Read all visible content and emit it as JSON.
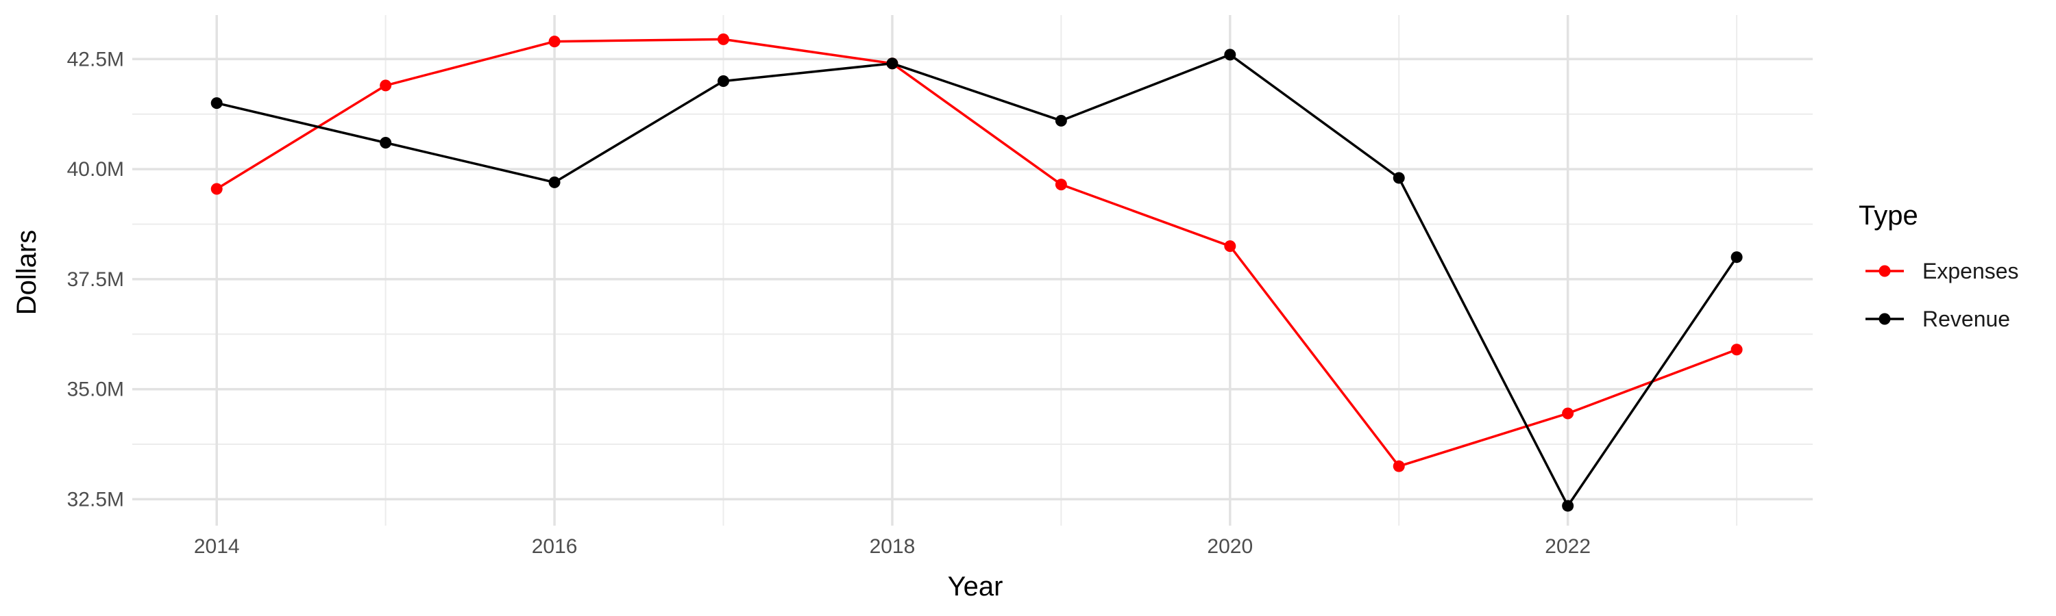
{
  "chart_data": {
    "type": "line",
    "title": "",
    "xlabel": "Year",
    "ylabel": "Dollars",
    "x": [
      2014,
      2015,
      2016,
      2017,
      2018,
      2019,
      2020,
      2021,
      2022,
      2023
    ],
    "xlim": [
      2013.5,
      2023.45
    ],
    "ylim": [
      31.9,
      43.5
    ],
    "x_ticks": [
      2014,
      2016,
      2018,
      2020,
      2022
    ],
    "x_tick_labels": [
      "2014",
      "2016",
      "2018",
      "2020",
      "2022"
    ],
    "y_ticks": [
      32.5,
      35.0,
      37.5,
      40.0,
      42.5
    ],
    "y_tick_labels": [
      "32.5M",
      "35.0M",
      "37.5M",
      "40.0M",
      "42.5M"
    ],
    "y_unit": "M",
    "grid": true,
    "legend": {
      "title": "Type",
      "position": "right"
    },
    "series": [
      {
        "name": "Expenses",
        "color": "#ff0000",
        "values": [
          39.55,
          41.9,
          42.9,
          42.95,
          42.4,
          39.65,
          38.25,
          33.25,
          34.45,
          35.9
        ]
      },
      {
        "name": "Revenue",
        "color": "#000000",
        "values": [
          41.5,
          40.6,
          39.7,
          42.0,
          42.4,
          41.1,
          42.6,
          39.8,
          32.35,
          38.0
        ]
      }
    ]
  }
}
